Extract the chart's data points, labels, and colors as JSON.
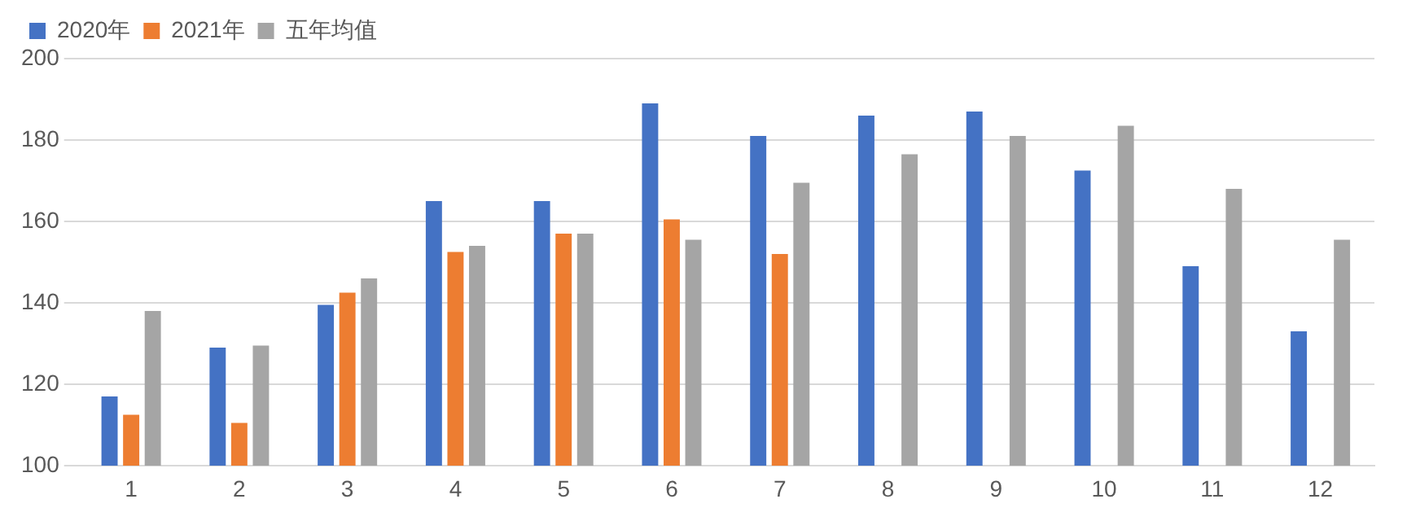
{
  "chart_data": {
    "type": "bar",
    "categories": [
      "1",
      "2",
      "3",
      "4",
      "5",
      "6",
      "7",
      "8",
      "9",
      "10",
      "11",
      "12"
    ],
    "series": [
      {
        "name": "2020年",
        "color": "#4472c4",
        "values": [
          117,
          129,
          139.5,
          165,
          165,
          189,
          181,
          186,
          187,
          172.5,
          149,
          133
        ]
      },
      {
        "name": "2021年",
        "color": "#ed7d31",
        "values": [
          112.5,
          110.5,
          142.5,
          152.5,
          157,
          160.5,
          152,
          null,
          null,
          null,
          null,
          null
        ]
      },
      {
        "name": "五年均值",
        "color": "#a5a5a5",
        "values": [
          138,
          129.5,
          146,
          154,
          157,
          155.5,
          169.5,
          176.5,
          181,
          183.5,
          168,
          155.5
        ]
      }
    ],
    "ylim": [
      100,
      200
    ],
    "yticks": [
      100,
      120,
      140,
      160,
      180,
      200
    ],
    "grid": "y",
    "legend": "top left"
  }
}
